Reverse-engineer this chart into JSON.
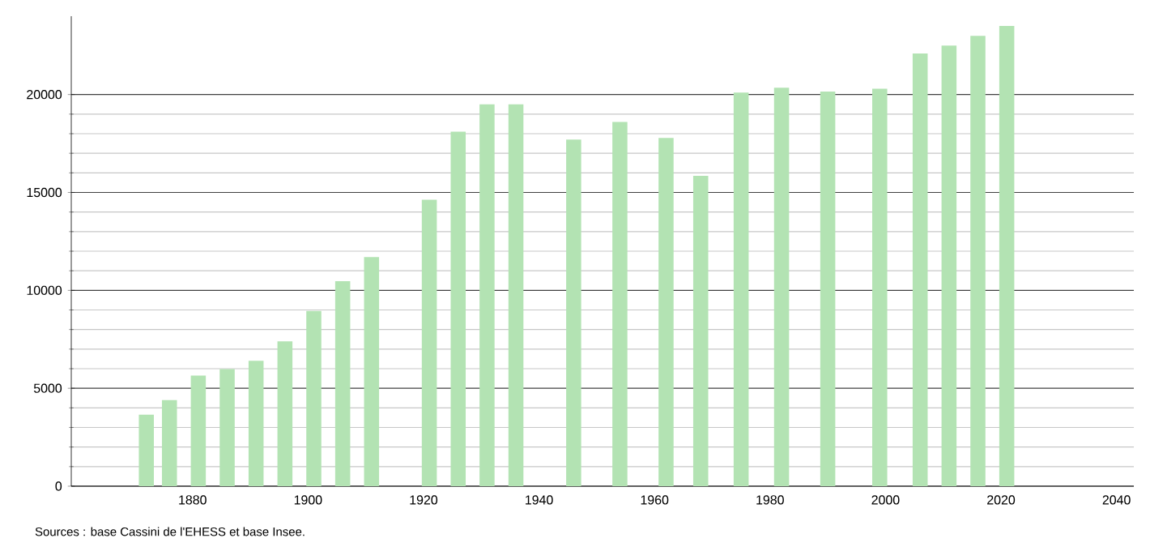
{
  "chart_data": {
    "type": "bar",
    "x": [
      1872,
      1876,
      1881,
      1886,
      1891,
      1896,
      1901,
      1906,
      1911,
      1921,
      1926,
      1931,
      1936,
      1946,
      1954,
      1962,
      1968,
      1975,
      1982,
      1990,
      1999,
      2006,
      2011,
      2016,
      2021
    ],
    "values": [
      3650,
      4400,
      5650,
      5980,
      6400,
      7400,
      8950,
      10470,
      11700,
      14630,
      18100,
      19500,
      19500,
      17700,
      18600,
      17780,
      15850,
      20100,
      20350,
      20150,
      20300,
      22100,
      22500,
      23000,
      23500
    ],
    "color": "#b3e3b3",
    "xlim": [
      1859,
      2043
    ],
    "ylim": [
      0,
      24000
    ],
    "xticks": [
      1880,
      1900,
      1920,
      1940,
      1960,
      1980,
      2000,
      2020,
      2040
    ],
    "yticks": [
      0,
      5000,
      10000,
      15000,
      20000
    ],
    "grid": "y",
    "annotations": [
      "Sources : base Cassini de l'EHESS et base Insee."
    ]
  }
}
